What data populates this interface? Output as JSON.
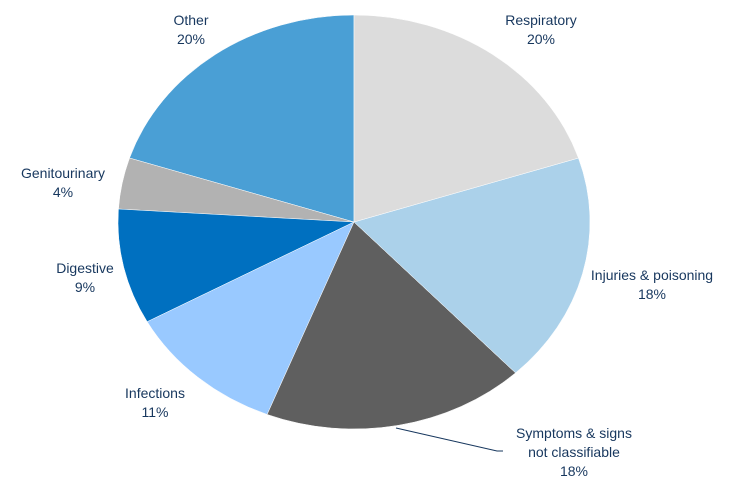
{
  "chart_data": {
    "type": "pie",
    "categories": [
      "Respiratory",
      "Injuries & poisoning",
      "Symptoms & signs not classifiable",
      "Infections",
      "Digestive",
      "Genitourinary",
      "Other"
    ],
    "values": [
      20,
      18,
      18,
      11,
      9,
      4,
      20
    ],
    "value_labels": [
      "20%",
      "18%",
      "18%",
      "11%",
      "9%",
      "4%",
      "20%"
    ],
    "colors": [
      "#dcdcdc",
      "#abd1ea",
      "#5f5f5f",
      "#99c9ff",
      "#0070c0",
      "#b2b2b2",
      "#4a9fd5"
    ]
  }
}
